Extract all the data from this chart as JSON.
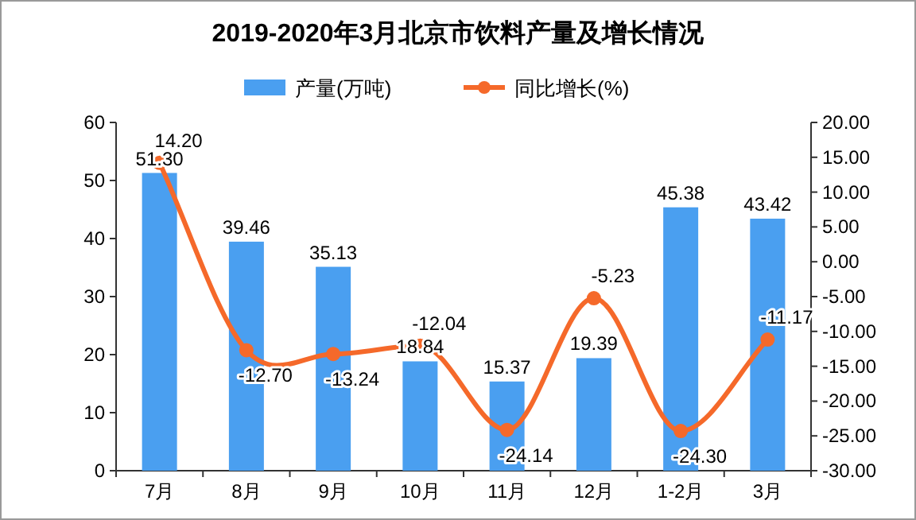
{
  "chart_data": {
    "type": "bar",
    "title": "2019-2020年3月北京市饮料产量及增长情况",
    "categories": [
      "7月",
      "8月",
      "9月",
      "10月",
      "11月",
      "12月",
      "1-2月",
      "3月"
    ],
    "series": [
      {
        "name": "产量(万吨)",
        "color": "#4a9ff0",
        "values": [
          51.3,
          39.46,
          35.13,
          18.84,
          15.37,
          19.39,
          45.38,
          43.42
        ],
        "value_labels": [
          "51.30",
          "39.46",
          "35.13",
          "18.84",
          "15.37",
          "19.39",
          "45.38",
          "43.42"
        ]
      },
      {
        "name": "同比增长(%)",
        "type": "line",
        "axis": "y2",
        "color": "#f5692a",
        "marker": "circle",
        "values": [
          14.2,
          -12.7,
          -13.24,
          -12.04,
          -24.14,
          -5.23,
          -24.3,
          -11.17
        ],
        "value_labels": [
          "14.20",
          "-12.70",
          "-13.24",
          "-12.04",
          "-24.14",
          "-5.23",
          "-24.30",
          "-11.17"
        ]
      }
    ],
    "ylim": [
      0,
      60
    ],
    "yticks": [
      0,
      10,
      20,
      30,
      40,
      50,
      60
    ],
    "y2lim": [
      -30,
      20
    ],
    "y2ticks": [
      {
        "value": -30,
        "label": "-30.00"
      },
      {
        "value": -25,
        "label": "-25.00"
      },
      {
        "value": -20,
        "label": "-20.00"
      },
      {
        "value": -15,
        "label": "-15.00"
      },
      {
        "value": -10,
        "label": "-10.00"
      },
      {
        "value": -5,
        "label": "-5.00"
      },
      {
        "value": 0,
        "label": "0.00"
      },
      {
        "value": 5,
        "label": "5.00"
      },
      {
        "value": 10,
        "label": "10.00"
      },
      {
        "value": 15,
        "label": "15.00"
      },
      {
        "value": 20,
        "label": "20.00"
      }
    ],
    "legend": "top",
    "grid": false
  }
}
